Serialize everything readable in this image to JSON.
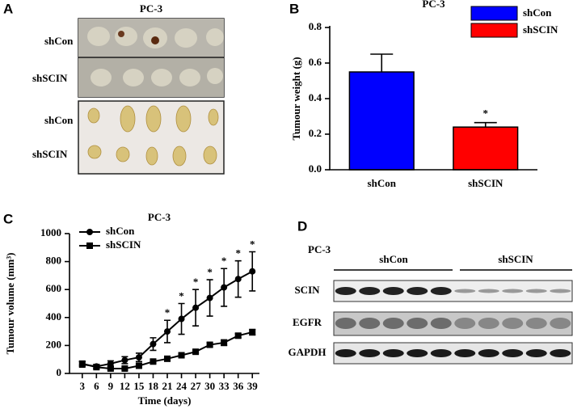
{
  "panel_a": {
    "letter": "A",
    "title": "PC-3",
    "mice_rows": [
      "shCon",
      "shSCIN"
    ],
    "tumour_rows": [
      "shCon",
      "shSCIN"
    ]
  },
  "chart_data": [
    {
      "type": "bar",
      "letter": "B",
      "title": "PC-3",
      "ylabel": "Tumour weight (g)",
      "categories": [
        "shCon",
        "shSCIN"
      ],
      "values": [
        0.55,
        0.24
      ],
      "errors": [
        0.1,
        0.025
      ],
      "colors": [
        "#0000ff",
        "#ff0000"
      ],
      "ylim": [
        0,
        0.8
      ],
      "yticks": [
        {
          "value": 0,
          "label": "0.0"
        },
        0.2,
        0.4,
        0.6,
        0.8
      ],
      "legend": "upper right",
      "significance": [
        null,
        "*"
      ]
    },
    {
      "type": "line",
      "letter": "C",
      "title": "PC-3",
      "xlabel": "Time (days)",
      "ylabel": "Tumour volume (mm³)",
      "x": [
        3,
        6,
        9,
        12,
        15,
        18,
        21,
        24,
        27,
        30,
        33,
        36,
        39
      ],
      "series": [
        {
          "name": "shCon",
          "color": "#000000",
          "marker": "circle",
          "values": [
            65,
            50,
            70,
            95,
            115,
            210,
            300,
            390,
            470,
            540,
            615,
            675,
            730
          ],
          "errors": [
            20,
            15,
            20,
            25,
            30,
            45,
            80,
            110,
            130,
            130,
            135,
            130,
            140
          ]
        },
        {
          "name": "shSCIN",
          "color": "#000000",
          "marker": "square",
          "values": [
            70,
            45,
            35,
            35,
            55,
            85,
            105,
            130,
            155,
            205,
            220,
            270,
            295
          ],
          "errors": [
            15,
            10,
            10,
            10,
            10,
            10,
            10,
            10,
            10,
            15,
            20,
            15,
            20
          ]
        }
      ],
      "xlim": [
        0.3,
        40.5
      ],
      "xticks": [
        3,
        6,
        9,
        12,
        15,
        18,
        21,
        24,
        27,
        30,
        33,
        36,
        39
      ],
      "ylim": [
        0,
        1000
      ],
      "yticks": [
        0,
        200,
        400,
        600,
        800,
        1000
      ],
      "legend": "upper left",
      "significance": [
        null,
        null,
        null,
        null,
        null,
        null,
        "*",
        "*",
        "*",
        "*",
        "*",
        "*",
        "*"
      ]
    }
  ],
  "panel_d": {
    "letter": "D",
    "title": "PC-3",
    "groups": [
      "shCon",
      "shSCIN"
    ],
    "rows": [
      "SCIN",
      "EGFR",
      "GAPDH"
    ]
  }
}
